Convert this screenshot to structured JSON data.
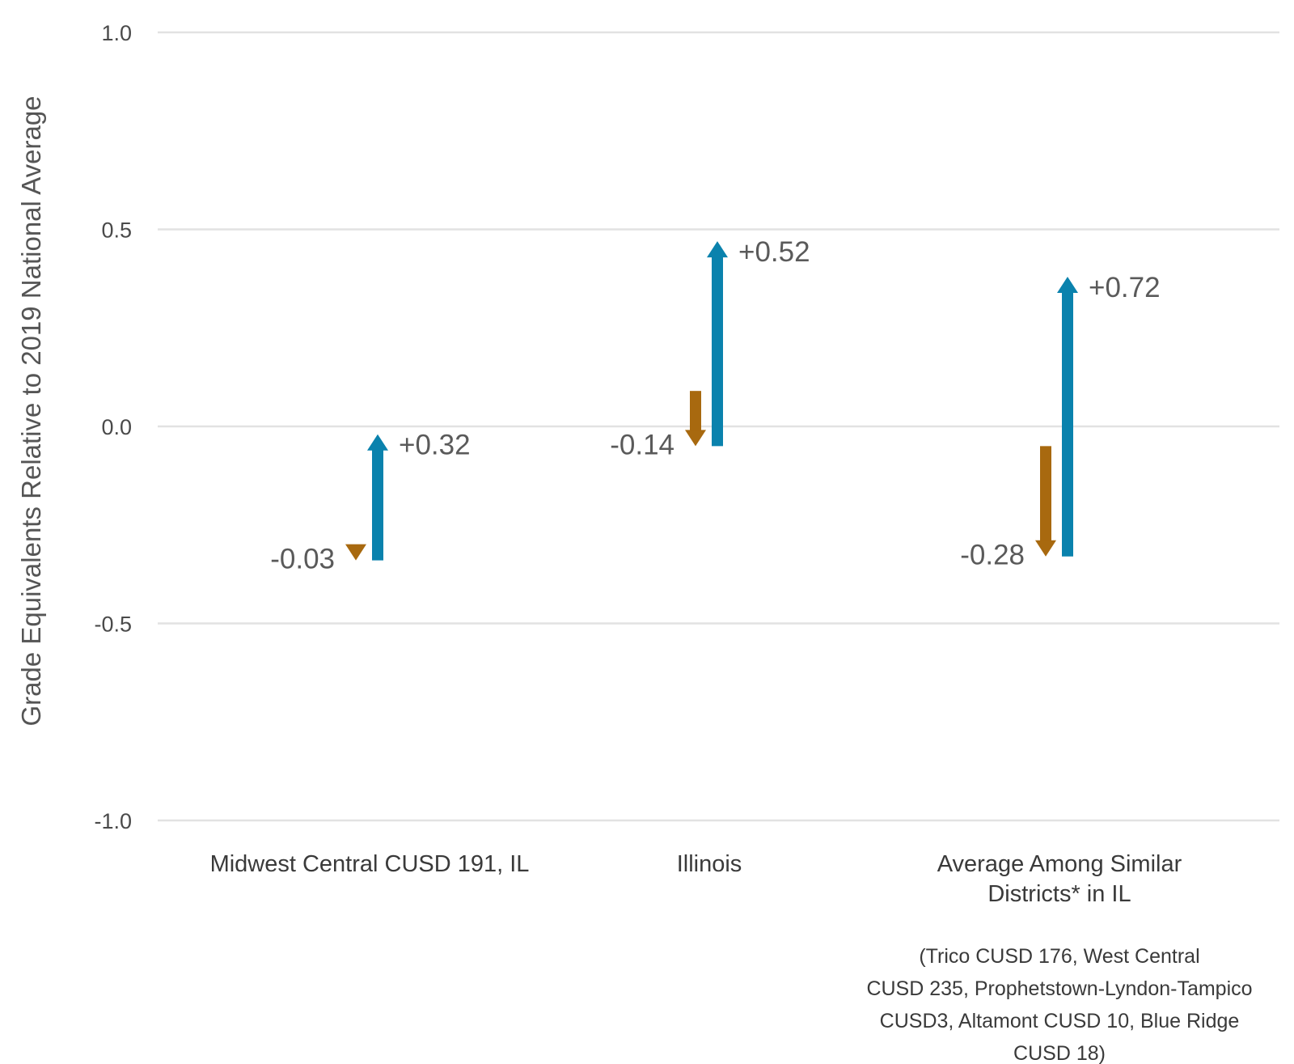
{
  "chart_data": {
    "type": "arrow",
    "ylabel": "Grade Equivalents Relative to 2019 National Average",
    "ylim": [
      -1.0,
      1.0
    ],
    "yticks": [
      "1.0",
      "0.5",
      "0.0",
      "-0.5",
      "-1.0"
    ],
    "grid": true,
    "colors": {
      "decline": "#a8690f",
      "recovery": "#0a82ad",
      "grid": "#e2e2e2"
    },
    "categories": [
      {
        "label_lines": [
          "Midwest Central CUSD 191, IL"
        ],
        "note_lines": []
      },
      {
        "label_lines": [
          "Illinois"
        ],
        "note_lines": []
      },
      {
        "label_lines": [
          "Average Among Similar",
          "Districts* in IL"
        ],
        "note_lines": [
          "(Trico CUSD 176, West Central",
          "CUSD 235, Prophetstown-Lyndon-Tampico",
          "CUSD3, Altamont CUSD 10, Blue Ridge",
          "CUSD 18)"
        ]
      }
    ],
    "series": [
      {
        "name": "",
        "color": "#a8690f",
        "direction": "down",
        "start": [
          -0.31,
          0.09,
          -0.05
        ],
        "end": [
          -0.34,
          -0.05,
          -0.33
        ],
        "labels": [
          "-0.03",
          "-0.14",
          "-0.28"
        ]
      },
      {
        "name": "",
        "color": "#0a82ad",
        "direction": "up",
        "start": [
          -0.34,
          -0.05,
          -0.33
        ],
        "end": [
          -0.02,
          0.47,
          0.38
        ],
        "labels": [
          "+0.32",
          "+0.52",
          "+0.72"
        ]
      }
    ]
  }
}
